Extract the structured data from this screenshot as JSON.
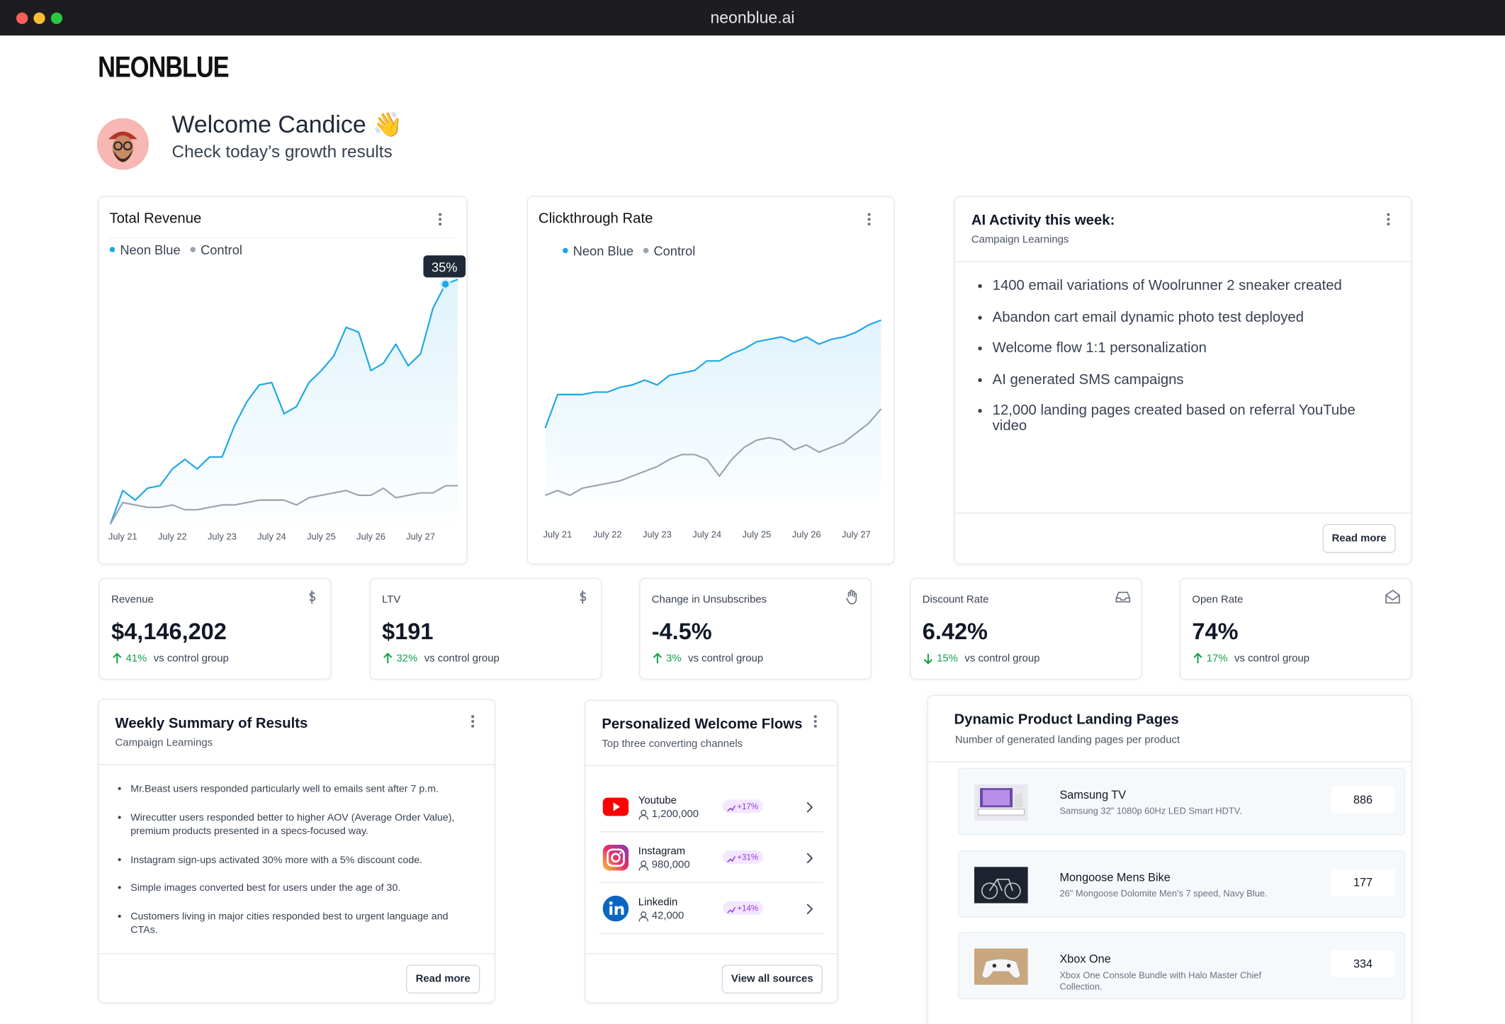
{
  "browser": {
    "url": "neonblue.ai"
  },
  "header": {
    "logo": "NEONBLUE",
    "welcome": "Welcome Candice 👋",
    "subtitle": "Check today’s growth results"
  },
  "chart_data": [
    {
      "type": "line",
      "title": "Total Revenue",
      "annotation": "35%",
      "x": [
        -0.25,
        0,
        0.25,
        0.5,
        0.75,
        1,
        1.25,
        1.5,
        1.75,
        2,
        2.25,
        2.5,
        2.75,
        3,
        3.25,
        3.5,
        3.75,
        4,
        4.25,
        4.5,
        4.75,
        5,
        5.25,
        5.5,
        5.75,
        6,
        6.25,
        6.5,
        6.75
      ],
      "xlim": [
        -0.25,
        6.75
      ],
      "xticks": [
        {
          "value": 0,
          "label": "July 21"
        },
        {
          "value": 1,
          "label": "July 22"
        },
        {
          "value": 2,
          "label": "July 23"
        },
        {
          "value": 3,
          "label": "July 24"
        },
        {
          "value": 4,
          "label": "July 25"
        },
        {
          "value": 5,
          "label": "July 26"
        },
        {
          "value": 6,
          "label": "July 27"
        }
      ],
      "ylim": [
        0,
        102
      ],
      "series": [
        {
          "name": "Neon Blue",
          "color": "#1ea7e4",
          "values": [
            0,
            14,
            10,
            15,
            16,
            23,
            27,
            23,
            28,
            28,
            41,
            51,
            58,
            59,
            46,
            49,
            59,
            64,
            70,
            82,
            80,
            64,
            67,
            75,
            66,
            71,
            90,
            100,
            102
          ]
        },
        {
          "name": "Control",
          "color": "#9ca3af",
          "values": [
            0,
            9,
            8,
            7,
            7,
            8,
            6,
            6,
            7,
            8,
            8,
            9,
            10,
            10,
            10,
            8,
            11,
            12,
            13,
            14,
            12,
            12,
            15,
            11,
            12,
            13,
            13,
            16,
            16
          ]
        }
      ]
    },
    {
      "type": "line",
      "title": "Clickthrough Rate",
      "x": [
        -0.25,
        0,
        0.25,
        0.5,
        0.75,
        1,
        1.25,
        1.5,
        1.75,
        2,
        2.25,
        2.5,
        2.75,
        3,
        3.25,
        3.5,
        3.75,
        4,
        4.25,
        4.5,
        4.75,
        5,
        5.25,
        5.5,
        5.75,
        6,
        6.25,
        6.5
      ],
      "xlim": [
        -0.25,
        6.5
      ],
      "xticks": [
        {
          "value": 0,
          "label": "July 21"
        },
        {
          "value": 1,
          "label": "July 22"
        },
        {
          "value": 2,
          "label": "July 23"
        },
        {
          "value": 3,
          "label": "July 24"
        },
        {
          "value": 4,
          "label": "July 25"
        },
        {
          "value": 5,
          "label": "July 26"
        },
        {
          "value": 6,
          "label": "July 27"
        }
      ],
      "ylim": [
        0,
        100
      ],
      "series": [
        {
          "name": "Neon Blue",
          "color": "#1ea7e4",
          "values": [
            32,
            46,
            46,
            46,
            47,
            47,
            49,
            50,
            52,
            50,
            54,
            55,
            56,
            60,
            60,
            63,
            65,
            68,
            69,
            70,
            68,
            70,
            67,
            69,
            70,
            72,
            75,
            77
          ]
        },
        {
          "name": "Control",
          "color": "#9ca3af",
          "values": [
            4,
            6,
            4,
            7,
            8,
            9,
            10,
            12,
            14,
            16,
            19,
            21,
            21,
            19,
            12,
            19,
            24,
            27,
            28,
            27,
            23,
            25,
            22,
            24,
            26,
            30,
            34,
            40
          ]
        }
      ]
    }
  ],
  "ai_activity": {
    "title": "AI Activity this week:",
    "subtitle": "Campaign Learnings",
    "items": [
      "1400 email variations of Woolrunner 2 sneaker created",
      "Abandon cart email dynamic photo test deployed",
      "Welcome flow 1:1 personalization",
      "AI generated SMS campaigns",
      "12,000 landing pages created based on referral YouTube video"
    ],
    "button": "Read more"
  },
  "kpis": [
    {
      "label": "Revenue",
      "value": "$4,146,202",
      "change": "41%",
      "note": "vs control group",
      "trend": "up"
    },
    {
      "label": "LTV",
      "value": "$191",
      "change": "32%",
      "note": "vs control group",
      "trend": "up"
    },
    {
      "label": "Change in Unsubscribes",
      "value": "-4.5%",
      "change": "3%",
      "note": "vs control group",
      "trend": "up"
    },
    {
      "label": "Discount Rate",
      "value": "6.42%",
      "change": "15%",
      "note": "vs control group",
      "trend": "down"
    },
    {
      "label": "Open Rate",
      "value": "74%",
      "change": "17%",
      "note": "vs control group",
      "trend": "up"
    }
  ],
  "weekly_summary": {
    "title": "Weekly Summary of Results",
    "subtitle": "Campaign Learnings",
    "items": [
      "Mr.Beast users responded particularly well to emails sent after 7 p.m.",
      "Wirecutter users responded better to higher AOV (Average Order Value), premium products presented in a specs-focused way.",
      "Instagram sign-ups activated 30% more with a 5% discount code.",
      "Simple images converted best for users under the age of 30.",
      "Customers living in major cities responded best to urgent language and CTAs."
    ],
    "button": "Read more"
  },
  "welcome_flows": {
    "title": "Personalized Welcome Flows",
    "subtitle": "Top three converting channels",
    "channels": [
      {
        "name": "Youtube",
        "followers": "1,200,000",
        "change": "+17%"
      },
      {
        "name": "Instagram",
        "followers": "980,000",
        "change": "+31%"
      },
      {
        "name": "Linkedin",
        "followers": "42,000",
        "change": "+14%"
      }
    ],
    "button": "View all sources"
  },
  "landing_pages": {
    "title": "Dynamic Product Landing Pages",
    "subtitle": "Number of generated landing pages per product",
    "products": [
      {
        "name": "Samsung TV",
        "description": "Samsung 32\" 1080p 60Hz LED Smart HDTV.",
        "count": 886
      },
      {
        "name": "Mongoose Mens Bike",
        "description": "26\" Mongoose Dolomite Men's 7 speed, Navy Blue.",
        "count": 177
      },
      {
        "name": "Xbox One",
        "description": "Xbox One Console Bundle with Halo Master Chief Collection.",
        "count": 334
      }
    ]
  }
}
